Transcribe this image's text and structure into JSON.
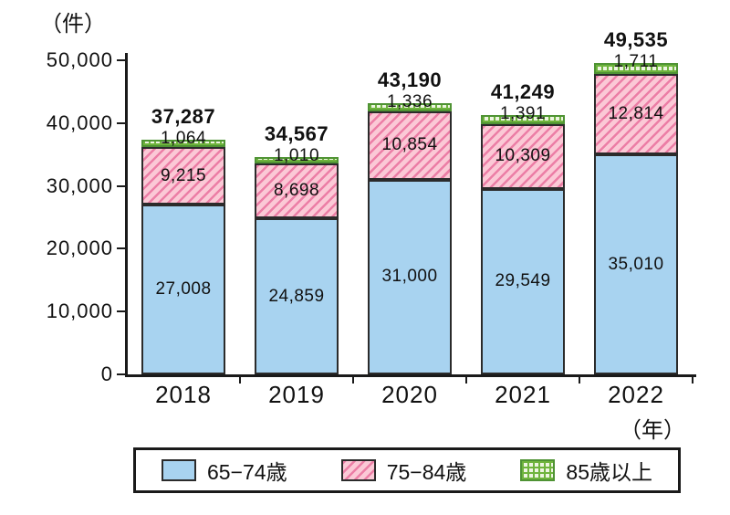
{
  "chart_data": {
    "type": "bar",
    "stacked": true,
    "y_unit_label": "（件）",
    "x_unit_label": "（年）",
    "categories": [
      "2018",
      "2019",
      "2020",
      "2021",
      "2022"
    ],
    "series": [
      {
        "name": "65−74歳",
        "values": [
          27008,
          24859,
          31000,
          29549,
          35010
        ],
        "fill": "#a8d3f0",
        "accent": "",
        "border": "#2b2b2b",
        "pattern": "solid"
      },
      {
        "name": "75−84歳",
        "values": [
          9215,
          8698,
          10854,
          10309,
          12814
        ],
        "fill": "#fbc9d6",
        "accent": "#ec7ea6",
        "border": "#2b2b2b",
        "pattern": "diagonal"
      },
      {
        "name": "85歳以上",
        "values": [
          1064,
          1010,
          1336,
          1391,
          1711
        ],
        "fill": "#eef5e2",
        "accent": "#6fb43d",
        "border": "#4f9334",
        "pattern": "grid"
      }
    ],
    "totals": [
      37287,
      34567,
      43190,
      41249,
      49535
    ],
    "ylim": [
      0,
      50000
    ],
    "yticks": [
      0,
      10000,
      20000,
      30000,
      40000,
      50000
    ],
    "grid": false,
    "legend_position": "bottom"
  }
}
